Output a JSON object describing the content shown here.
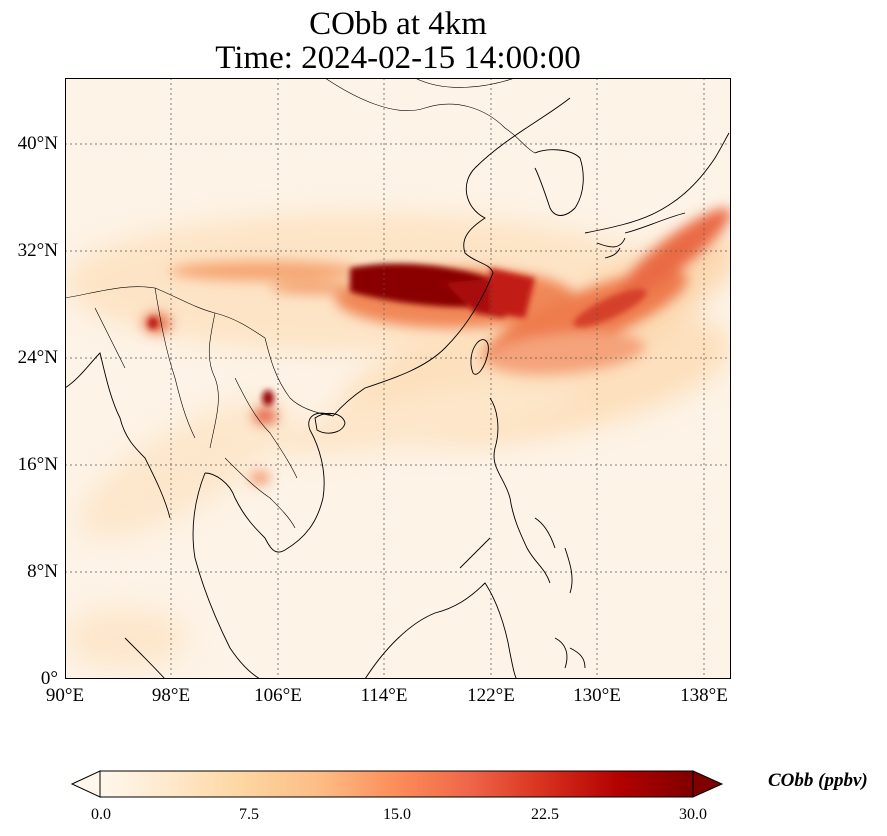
{
  "title": {
    "line1": "CObb at 4km",
    "line2": "Time: 2024-02-15 14:00:00"
  },
  "axes": {
    "lat_ticks": [
      "40°N",
      "32°N",
      "24°N",
      "16°N",
      "8°N",
      "0°"
    ],
    "lon_ticks": [
      "90°E",
      "98°E",
      "106°E",
      "114°E",
      "122°E",
      "130°E",
      "138°E"
    ],
    "lon_range": [
      90,
      140
    ],
    "lat_range": [
      0,
      45
    ],
    "gridlines": "dotted"
  },
  "colorbar": {
    "label": "CObb (ppbv)",
    "ticks": [
      "0.0",
      "7.5",
      "15.0",
      "22.5",
      "30.0"
    ],
    "range": [
      0,
      30
    ],
    "colormap": "OrRd",
    "extend": "both",
    "colors": [
      "#fff7ec",
      "#fee8c8",
      "#fdd49e",
      "#fdbb84",
      "#fc8d59",
      "#ef6548",
      "#d7301f",
      "#b30000",
      "#7f0000"
    ]
  },
  "chart_data": {
    "type": "heatmap",
    "title": "CObb at 4km\nTime: 2024-02-15 14:00:00",
    "xlabel": "",
    "ylabel": "",
    "x_ticks": [
      "90°E",
      "98°E",
      "106°E",
      "114°E",
      "122°E",
      "130°E",
      "138°E"
    ],
    "y_ticks": [
      "0°",
      "8°N",
      "16°N",
      "24°N",
      "32°N",
      "40°N"
    ],
    "xlim": [
      90,
      140
    ],
    "ylim": [
      0,
      45
    ],
    "value_range": [
      0,
      30
    ],
    "features": [
      {
        "lon": 117,
        "lat": 29.5,
        "value": 30
      },
      {
        "lon": 121,
        "lat": 28.5,
        "value": 28
      },
      {
        "lon": 113,
        "lat": 30,
        "value": 22
      },
      {
        "lon": 127,
        "lat": 31,
        "value": 18
      },
      {
        "lon": 135,
        "lat": 35,
        "value": 16
      },
      {
        "lon": 104,
        "lat": 30.5,
        "value": 9
      },
      {
        "lon": 96.5,
        "lat": 27,
        "value": 14
      },
      {
        "lon": 105.5,
        "lat": 20.5,
        "value": 18
      },
      {
        "lon": 104,
        "lat": 15,
        "value": 12
      },
      {
        "lon": 128,
        "lat": 25,
        "value": 10
      }
    ]
  }
}
